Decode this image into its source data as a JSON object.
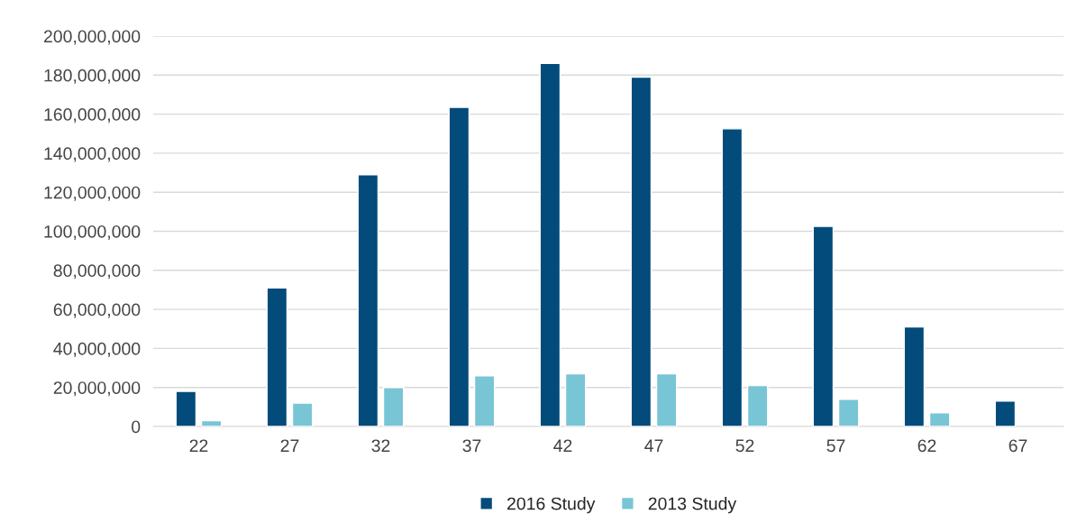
{
  "chart_data": {
    "type": "bar",
    "categories": [
      "22",
      "27",
      "32",
      "37",
      "42",
      "47",
      "52",
      "57",
      "62",
      "67"
    ],
    "series": [
      {
        "name": "2016 Study",
        "color": "#024b7a",
        "values": [
          18000000,
          71000000,
          129000000,
          163500000,
          186000000,
          179000000,
          152500000,
          102500000,
          51000000,
          13000000
        ]
      },
      {
        "name": "2013 Study",
        "color": "#78c5d6",
        "values": [
          3000000,
          12000000,
          20000000,
          26000000,
          27000000,
          27000000,
          21000000,
          14000000,
          7000000,
          null
        ]
      }
    ],
    "ylim": [
      0,
      200000000
    ],
    "yticks": [
      0,
      {
        "value": 20000000,
        "label": "20,000,000"
      },
      {
        "value": 40000000,
        "label": "40,000,000"
      },
      {
        "value": 60000000,
        "label": "60,000,000"
      },
      {
        "value": 80000000,
        "label": "80,000,000"
      },
      {
        "value": 100000000,
        "label": "100,000,000"
      },
      {
        "value": 120000000,
        "label": "120,000,000"
      },
      {
        "value": 140000000,
        "label": "140,000,000"
      },
      {
        "value": 160000000,
        "label": "160,000,000"
      },
      {
        "value": 180000000,
        "label": "180,000,000"
      },
      {
        "value": 200000000,
        "label": "200,000,000"
      }
    ],
    "grid": "y",
    "legend": "bottom"
  }
}
